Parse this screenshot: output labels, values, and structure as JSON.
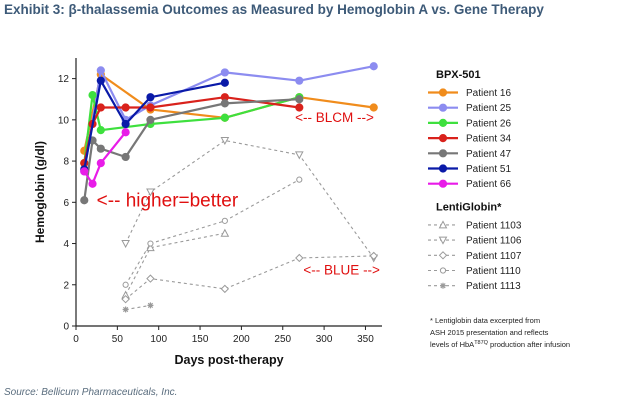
{
  "title": "Exhibit 3: β-thalassemia Outcomes as Measured by Hemoglobin A vs. Gene Therapy",
  "source": "Source:  Bellicum Pharmaceuticals, Inc.",
  "chart_data": {
    "type": "line",
    "xlabel": "Days post-therapy",
    "ylabel": "Hemoglobin (g/dl)",
    "xlim": [
      0,
      370
    ],
    "ylim": [
      0,
      13
    ],
    "xticks": [
      0,
      50,
      100,
      150,
      200,
      250,
      300,
      350
    ],
    "yticks": [
      0,
      2,
      4,
      6,
      8,
      10,
      12
    ],
    "groups": [
      {
        "title": "BPX-501",
        "style": "solid",
        "series": [
          {
            "name": "Patient 16",
            "color": "#f08c1c",
            "x": [
              10,
              30,
              90,
              180,
              270,
              360
            ],
            "y": [
              8.5,
              12.2,
              10.5,
              10.1,
              11.1,
              10.6
            ]
          },
          {
            "name": "Patient 25",
            "color": "#8c8cf0",
            "x": [
              10,
              30,
              60,
              90,
              180,
              270,
              360
            ],
            "y": [
              7.5,
              12.4,
              10.0,
              10.7,
              12.3,
              11.9,
              12.6
            ]
          },
          {
            "name": "Patient 26",
            "color": "#3ee03e",
            "x": [
              10,
              20,
              30,
              90,
              180,
              270
            ],
            "y": [
              7.9,
              11.2,
              9.5,
              9.8,
              10.1,
              11.1
            ]
          },
          {
            "name": "Patient 34",
            "color": "#d9221c",
            "x": [
              10,
              20,
              30,
              60,
              90,
              180,
              270
            ],
            "y": [
              7.9,
              9.8,
              10.6,
              10.6,
              10.6,
              11.1,
              10.6
            ]
          },
          {
            "name": "Patient 47",
            "color": "#777777",
            "x": [
              10,
              20,
              30,
              60,
              90,
              180,
              270
            ],
            "y": [
              6.1,
              9.0,
              8.6,
              8.2,
              10.0,
              10.8,
              11.0
            ]
          },
          {
            "name": "Patient 51",
            "color": "#0a1aa8",
            "x": [
              10,
              30,
              60,
              90,
              180
            ],
            "y": [
              7.6,
              11.9,
              9.8,
              11.1,
              11.8
            ]
          },
          {
            "name": "Patient 66",
            "color": "#e81ce8",
            "x": [
              10,
              20,
              30,
              60
            ],
            "y": [
              7.5,
              6.9,
              7.9,
              9.4
            ]
          }
        ]
      },
      {
        "title": "LentiGlobin*",
        "style": "dashed",
        "series": [
          {
            "name": "Patient 1103",
            "color": "#9a9a9a",
            "marker": "triangle-up",
            "x": [
              60,
              90,
              180
            ],
            "y": [
              1.5,
              3.8,
              4.5
            ]
          },
          {
            "name": "Patient 1106",
            "color": "#9a9a9a",
            "marker": "triangle-down",
            "x": [
              60,
              90,
              180,
              270,
              360
            ],
            "y": [
              4.0,
              6.5,
              9.0,
              8.3,
              3.3
            ]
          },
          {
            "name": "Patient 1107",
            "color": "#9a9a9a",
            "marker": "diamond",
            "x": [
              60,
              90,
              180,
              270,
              360
            ],
            "y": [
              1.3,
              2.3,
              1.8,
              3.3,
              3.4
            ]
          },
          {
            "name": "Patient 1110",
            "color": "#9a9a9a",
            "marker": "circle",
            "x": [
              60,
              90,
              180,
              270
            ],
            "y": [
              2.0,
              4.0,
              5.1,
              7.1
            ]
          },
          {
            "name": "Patient 1113",
            "color": "#9a9a9a",
            "marker": "star",
            "x": [
              60,
              90
            ],
            "y": [
              0.8,
              1.0
            ]
          }
        ]
      }
    ],
    "annotations": [
      {
        "text": "<-- BLCM -->",
        "x": 265,
        "y": 9.9
      },
      {
        "text": "<-- higher=better",
        "x": 25,
        "y": 5.8
      },
      {
        "text": "<-- BLUE -->",
        "x": 275,
        "y": 2.5
      }
    ],
    "footnote": [
      "* Lentiglobin data excerpted from",
      "ASH 2015 presentation and reflects",
      "levels of HbA",
      "T87Q",
      " production after infusion"
    ]
  }
}
